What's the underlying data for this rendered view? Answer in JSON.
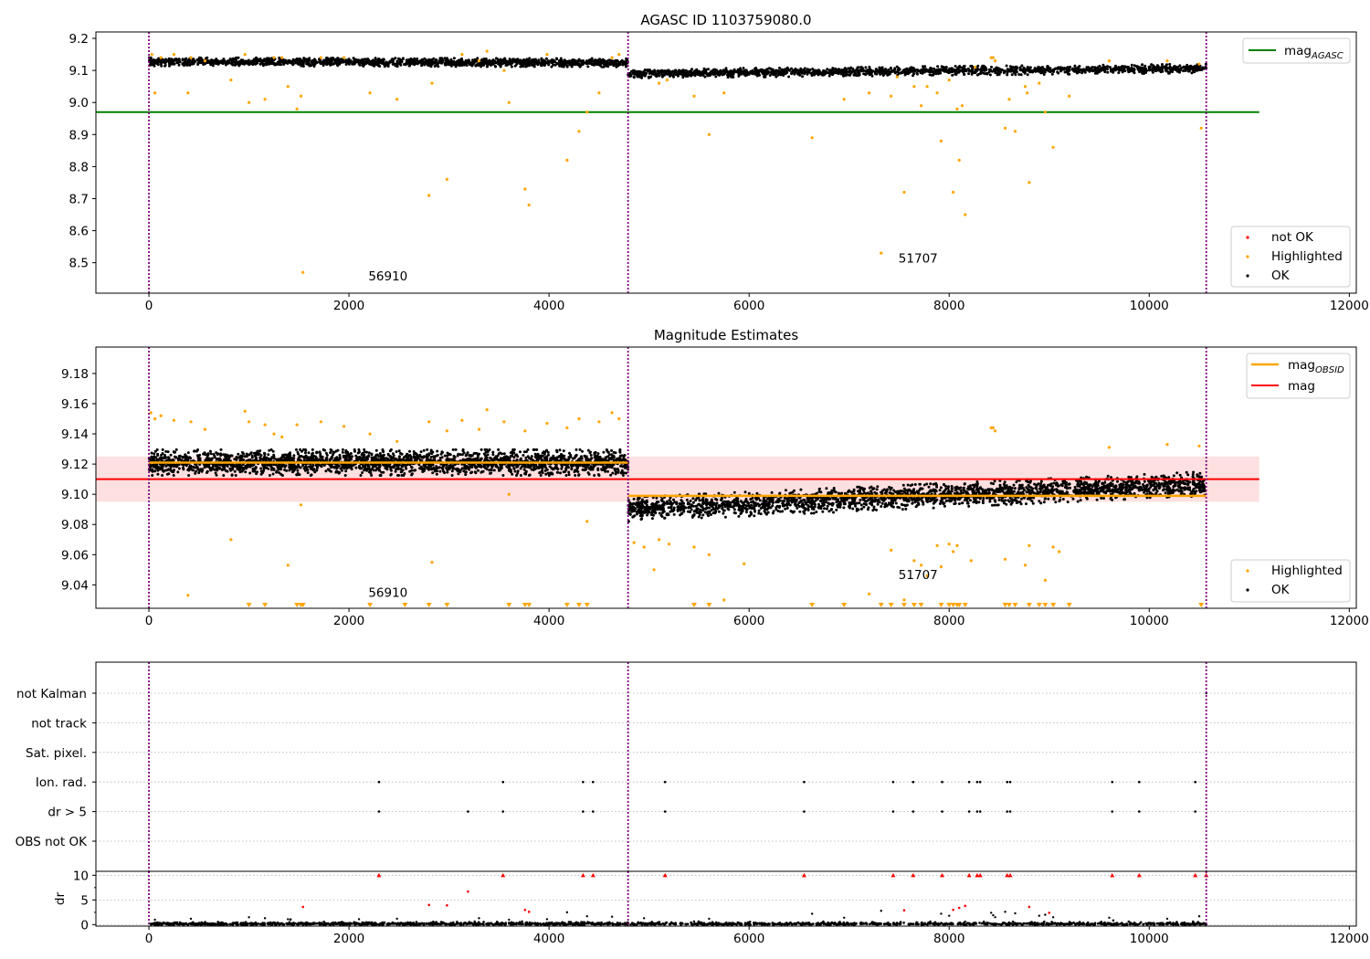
{
  "colors": {
    "ok": "#000000",
    "highlighted": "#ffa500",
    "not_ok": "#ff0000",
    "agasc_line": "#008000",
    "obsid_line": "#ffa500",
    "mag_line": "#ff0000",
    "mag_band": "#ffe0e0",
    "obsid_divider": "#800080",
    "grid": "#b0b0b0"
  },
  "chart_data": [
    {
      "type": "scatter",
      "title": "AGASC ID 1103759080.0",
      "xlabel": "",
      "ylabel": "",
      "xlim": [
        -530,
        12070
      ],
      "ylim": [
        8.405,
        9.22
      ],
      "x_ticks": [
        0,
        2000,
        4000,
        6000,
        8000,
        10000,
        12000
      ],
      "x_tick_labels": [
        "0",
        "2000",
        "4000",
        "6000",
        "8000",
        "10000",
        "12000"
      ],
      "y_ticks": [
        8.5,
        8.6,
        8.7,
        8.8,
        8.9,
        9.0,
        9.1,
        9.2
      ],
      "y_tick_labels": [
        "8.5",
        "8.6",
        "8.7",
        "8.8",
        "8.9",
        "9.0",
        "9.1",
        "9.2"
      ],
      "obsid_boundaries": [
        0,
        4790,
        10570
      ],
      "obsid_labels": [
        {
          "text": "56910",
          "x": 2390,
          "y": 8.445
        },
        {
          "text": "51707",
          "x": 7690,
          "y": 8.5
        }
      ],
      "reference_lines": [
        {
          "name": "mag_AGASC",
          "y": 8.97,
          "x_range": [
            -530,
            11100
          ],
          "color": "#008000"
        }
      ],
      "ok_bands": [
        {
          "x_range": [
            0,
            4790
          ],
          "y_start": 9.127,
          "y_end": 9.124,
          "spread": 0.013
        },
        {
          "x_range": [
            4790,
            10570
          ],
          "y_start": 9.09,
          "y_end": 9.106,
          "spread": 0.014
        }
      ],
      "highlighted": [
        [
          30,
          9.15
        ],
        [
          60,
          9.03
        ],
        [
          120,
          9.14
        ],
        [
          250,
          9.15
        ],
        [
          390,
          9.03
        ],
        [
          420,
          9.14
        ],
        [
          560,
          9.13
        ],
        [
          820,
          9.07
        ],
        [
          960,
          9.15
        ],
        [
          1000,
          9.0
        ],
        [
          1160,
          9.01
        ],
        [
          1250,
          9.14
        ],
        [
          1330,
          9.14
        ],
        [
          1390,
          9.05
        ],
        [
          1480,
          8.98
        ],
        [
          1520,
          9.02
        ],
        [
          1540,
          8.47
        ],
        [
          1720,
          9.14
        ],
        [
          1950,
          9.14
        ],
        [
          2210,
          9.03
        ],
        [
          2480,
          9.01
        ],
        [
          2800,
          8.71
        ],
        [
          2830,
          9.06
        ],
        [
          2980,
          8.76
        ],
        [
          3130,
          9.15
        ],
        [
          3300,
          9.13
        ],
        [
          3380,
          9.16
        ],
        [
          3550,
          9.1
        ],
        [
          3600,
          9.0
        ],
        [
          3760,
          8.73
        ],
        [
          3800,
          8.68
        ],
        [
          3980,
          9.15
        ],
        [
          4180,
          8.82
        ],
        [
          4300,
          8.91
        ],
        [
          4380,
          8.97
        ],
        [
          4500,
          9.03
        ],
        [
          4630,
          9.14
        ],
        [
          4700,
          9.15
        ],
        [
          5100,
          9.06
        ],
        [
          5180,
          9.07
        ],
        [
          5450,
          9.02
        ],
        [
          5600,
          8.9
        ],
        [
          5750,
          9.03
        ],
        [
          6630,
          8.89
        ],
        [
          6950,
          9.01
        ],
        [
          7200,
          9.03
        ],
        [
          7320,
          8.53
        ],
        [
          7420,
          9.02
        ],
        [
          7480,
          9.08
        ],
        [
          7550,
          8.72
        ],
        [
          7650,
          9.05
        ],
        [
          7720,
          8.99
        ],
        [
          7780,
          9.05
        ],
        [
          7880,
          9.03
        ],
        [
          7920,
          8.88
        ],
        [
          8000,
          9.07
        ],
        [
          8040,
          8.72
        ],
        [
          8080,
          8.98
        ],
        [
          8100,
          8.82
        ],
        [
          8160,
          8.65
        ],
        [
          8130,
          8.99
        ],
        [
          8260,
          9.11
        ],
        [
          8420,
          9.14
        ],
        [
          8440,
          9.14
        ],
        [
          8460,
          9.13
        ],
        [
          8560,
          8.92
        ],
        [
          8600,
          9.01
        ],
        [
          8660,
          8.91
        ],
        [
          8760,
          9.05
        ],
        [
          8780,
          9.03
        ],
        [
          8800,
          8.75
        ],
        [
          8900,
          9.06
        ],
        [
          8960,
          8.97
        ],
        [
          9040,
          8.86
        ],
        [
          9200,
          9.02
        ],
        [
          9600,
          9.13
        ],
        [
          10180,
          9.13
        ],
        [
          10500,
          9.12
        ],
        [
          10520,
          8.92
        ]
      ],
      "legend": {
        "position": "top-right",
        "entries": [
          {
            "name": "mag_AGASC",
            "color": "#008000"
          }
        ]
      },
      "legend_points": {
        "position": "bottom-right",
        "entries": [
          "not OK",
          "Highlighted",
          "OK"
        ]
      }
    },
    {
      "type": "scatter",
      "title": "Magnitude Estimates",
      "xlabel": "",
      "ylabel": "",
      "xlim": [
        -530,
        12070
      ],
      "ylim": [
        9.0245,
        9.1975
      ],
      "x_ticks": [
        0,
        2000,
        4000,
        6000,
        8000,
        10000,
        12000
      ],
      "x_tick_labels": [
        "0",
        "2000",
        "4000",
        "6000",
        "8000",
        "10000",
        "12000"
      ],
      "y_ticks": [
        9.04,
        9.06,
        9.08,
        9.1,
        9.12,
        9.14,
        9.16,
        9.18
      ],
      "y_tick_labels": [
        "9.04",
        "9.06",
        "9.08",
        "9.10",
        "9.12",
        "9.14",
        "9.16",
        "9.18"
      ],
      "obsid_boundaries": [
        0,
        4790,
        10570
      ],
      "obsid_labels": [
        {
          "text": "56910",
          "x": 2390,
          "y": 9.032
        },
        {
          "text": "51707",
          "x": 7690,
          "y": 9.044
        }
      ],
      "mag": 9.11,
      "mag_band": [
        9.095,
        9.125
      ],
      "mag_x_range": [
        -530,
        11100
      ],
      "obsid_mags": [
        {
          "x_range": [
            0,
            4790
          ],
          "y": 9.121
        },
        {
          "x_range": [
            4790,
            10570
          ],
          "y": 9.099
        }
      ],
      "ok_bands": [
        {
          "x_range": [
            0,
            4790
          ],
          "y_start": 9.121,
          "y_end": 9.121,
          "spread": 0.0085
        },
        {
          "x_range": [
            4790,
            10570
          ],
          "y_start": 9.09,
          "y_end": 9.107,
          "spread": 0.008
        }
      ],
      "highlighted": [
        [
          20,
          9.154
        ],
        [
          60,
          9.15
        ],
        [
          120,
          9.152
        ],
        [
          250,
          9.149
        ],
        [
          390,
          9.033
        ],
        [
          420,
          9.148
        ],
        [
          560,
          9.143
        ],
        [
          820,
          9.07
        ],
        [
          960,
          9.155
        ],
        [
          1000,
          9.148
        ],
        [
          1160,
          9.146
        ],
        [
          1250,
          9.14
        ],
        [
          1330,
          9.138
        ],
        [
          1390,
          9.053
        ],
        [
          1480,
          9.146
        ],
        [
          1520,
          9.093
        ],
        [
          1720,
          9.148
        ],
        [
          1950,
          9.145
        ],
        [
          2210,
          9.14
        ],
        [
          2480,
          9.135
        ],
        [
          2800,
          9.148
        ],
        [
          2830,
          9.055
        ],
        [
          2980,
          9.142
        ],
        [
          3130,
          9.149
        ],
        [
          3300,
          9.143
        ],
        [
          3380,
          9.156
        ],
        [
          3550,
          9.148
        ],
        [
          3600,
          9.1
        ],
        [
          3760,
          9.142
        ],
        [
          3980,
          9.147
        ],
        [
          4180,
          9.144
        ],
        [
          4300,
          9.15
        ],
        [
          4380,
          9.082
        ],
        [
          4500,
          9.148
        ],
        [
          4630,
          9.154
        ],
        [
          4700,
          9.15
        ],
        [
          4850,
          9.068
        ],
        [
          4950,
          9.065
        ],
        [
          5050,
          9.05
        ],
        [
          5100,
          9.07
        ],
        [
          5200,
          9.067
        ],
        [
          5450,
          9.065
        ],
        [
          5600,
          9.06
        ],
        [
          5750,
          9.03
        ],
        [
          5950,
          9.054
        ],
        [
          7200,
          9.034
        ],
        [
          7420,
          9.063
        ],
        [
          7550,
          9.03
        ],
        [
          7650,
          9.056
        ],
        [
          7720,
          9.053
        ],
        [
          7780,
          9.046
        ],
        [
          7880,
          9.066
        ],
        [
          7920,
          9.052
        ],
        [
          8000,
          9.067
        ],
        [
          8040,
          9.062
        ],
        [
          8080,
          9.066
        ],
        [
          8220,
          9.056
        ],
        [
          8420,
          9.144
        ],
        [
          8440,
          9.144
        ],
        [
          8460,
          9.142
        ],
        [
          8560,
          9.057
        ],
        [
          8760,
          9.053
        ],
        [
          8800,
          9.066
        ],
        [
          8960,
          9.043
        ],
        [
          9040,
          9.065
        ],
        [
          9100,
          9.062
        ],
        [
          9600,
          9.131
        ],
        [
          10180,
          9.133
        ],
        [
          10500,
          9.132
        ]
      ],
      "highlighted_offscale_x": [
        1000,
        1160,
        1480,
        1520,
        1540,
        2210,
        2560,
        2800,
        2980,
        3600,
        3760,
        3800,
        4180,
        4300,
        4380,
        5450,
        5600,
        6630,
        6950,
        7320,
        7420,
        7550,
        7650,
        7720,
        7920,
        8000,
        8040,
        8080,
        8100,
        8160,
        8560,
        8600,
        8660,
        8800,
        8900,
        8960,
        9040,
        9200,
        10520
      ],
      "legend": {
        "position": "top-right",
        "entries": [
          {
            "name": "mag_OBSID",
            "color": "#ffa500"
          },
          {
            "name": "mag",
            "color": "#ff0000"
          }
        ]
      },
      "legend_points": {
        "position": "bottom-right",
        "entries": [
          "Highlighted",
          "OK"
        ]
      }
    },
    {
      "type": "scatter",
      "title": "",
      "xlabel": "",
      "ylabel": "",
      "xlim": [
        -530,
        12070
      ],
      "obsid_boundaries": [
        0,
        4790,
        10570
      ],
      "flag_rows": [
        "not Kalman",
        "not track",
        "Sat. pixel.",
        "Ion. rad.",
        "dr > 5",
        "OBS not OK"
      ],
      "flags": {
        "Ion. rad.": [
          2300,
          3540,
          4340,
          4440,
          5160,
          6550,
          7440,
          7640,
          7930,
          8200,
          8280,
          8310,
          8580,
          8610,
          9630,
          9900,
          10460
        ],
        "dr > 5": [
          2300,
          3190,
          3540,
          4340,
          4440,
          5160,
          6550,
          7440,
          7640,
          7930,
          8200,
          8280,
          8310,
          8580,
          8610,
          9630,
          9900,
          10460
        ]
      },
      "flags_right_edge": [
        "not Kalman"
      ]
    },
    {
      "type": "scatter",
      "title": "",
      "xlabel": "",
      "ylabel": "dr",
      "xlim": [
        -530,
        12070
      ],
      "ylim": [
        -0.3,
        10.8
      ],
      "x_ticks": [
        0,
        2000,
        4000,
        6000,
        8000,
        10000,
        12000
      ],
      "x_tick_labels": [
        "0",
        "2000",
        "4000",
        "6000",
        "8000",
        "10000",
        "12000"
      ],
      "y_ticks": [
        0,
        5,
        10
      ],
      "y_tick_labels": [
        "0",
        "5",
        "10"
      ],
      "obsid_boundaries": [
        0,
        4790,
        10570
      ],
      "dr_clipped_at": 10,
      "dr_red": [
        [
          2300,
          10
        ],
        [
          3540,
          10
        ],
        [
          4340,
          10
        ],
        [
          4440,
          10
        ],
        [
          5160,
          10
        ],
        [
          6550,
          10
        ],
        [
          7440,
          10
        ],
        [
          7640,
          10
        ],
        [
          7930,
          10
        ],
        [
          8200,
          10
        ],
        [
          8280,
          10
        ],
        [
          8310,
          10
        ],
        [
          8580,
          10
        ],
        [
          8610,
          10
        ],
        [
          9630,
          10
        ],
        [
          9900,
          10
        ],
        [
          10460,
          10
        ],
        [
          10570,
          10
        ],
        [
          3190,
          6.7
        ],
        [
          1540,
          3.6
        ],
        [
          2800,
          4.0
        ],
        [
          2980,
          3.9
        ],
        [
          3760,
          3.0
        ],
        [
          3800,
          2.6
        ],
        [
          7550,
          2.9
        ],
        [
          8040,
          3.0
        ],
        [
          8100,
          3.4
        ],
        [
          8160,
          3.8
        ],
        [
          8800,
          3.6
        ],
        [
          9000,
          2.4
        ]
      ],
      "dr_black_extra": [
        [
          60,
          1.0
        ],
        [
          420,
          1.2
        ],
        [
          1000,
          1.5
        ],
        [
          1160,
          1.3
        ],
        [
          1390,
          1.1
        ],
        [
          2100,
          1.1
        ],
        [
          2480,
          1.2
        ],
        [
          3300,
          1.3
        ],
        [
          3600,
          1.0
        ],
        [
          3980,
          1.1
        ],
        [
          4180,
          2.5
        ],
        [
          4380,
          1.7
        ],
        [
          4630,
          1.6
        ],
        [
          4950,
          1.3
        ],
        [
          5600,
          1.2
        ],
        [
          6630,
          2.2
        ],
        [
          6950,
          1.4
        ],
        [
          7320,
          2.8
        ],
        [
          7920,
          2.2
        ],
        [
          8000,
          1.8
        ],
        [
          8420,
          2.4
        ],
        [
          8440,
          1.9
        ],
        [
          8460,
          1.5
        ],
        [
          8560,
          2.6
        ],
        [
          8660,
          2.3
        ],
        [
          8900,
          1.8
        ],
        [
          8960,
          2.0
        ],
        [
          9040,
          1.5
        ],
        [
          9600,
          1.4
        ],
        [
          10180,
          1.2
        ],
        [
          10500,
          1.7
        ]
      ]
    }
  ]
}
